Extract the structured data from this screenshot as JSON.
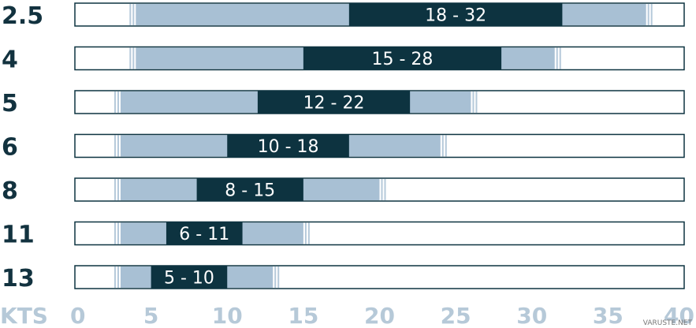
{
  "chart_data": {
    "type": "bar",
    "orientation": "horizontal",
    "xlim": [
      0,
      40
    ],
    "x_ticks": [
      "0",
      "5",
      "10",
      "15",
      "20",
      "25",
      "30",
      "35",
      "40"
    ],
    "x_unit_label": "KTS",
    "rows": [
      {
        "size": "2.5",
        "label": "18 - 32",
        "optimal": [
          18,
          32
        ],
        "extended": [
          4,
          37.5
        ]
      },
      {
        "size": "4",
        "label": "15 - 28",
        "optimal": [
          15,
          28
        ],
        "extended": [
          4,
          31.5
        ]
      },
      {
        "size": "5",
        "label": "12 - 22",
        "optimal": [
          12,
          22
        ],
        "extended": [
          3,
          26
        ]
      },
      {
        "size": "6",
        "label": "10 - 18",
        "optimal": [
          10,
          18
        ],
        "extended": [
          3,
          24
        ]
      },
      {
        "size": "8",
        "label": "8 - 15",
        "optimal": [
          8,
          15
        ],
        "extended": [
          3,
          20
        ]
      },
      {
        "size": "11",
        "label": "6 - 11",
        "optimal": [
          6,
          11
        ],
        "extended": [
          3,
          15
        ]
      },
      {
        "size": "13",
        "label": "5 - 10",
        "optimal": [
          5,
          10
        ],
        "extended": [
          3,
          13
        ]
      }
    ],
    "colors": {
      "optimal": "#0d3340",
      "extended": "#a8c0d4",
      "outline": "#0d3340",
      "labels": "#12323f",
      "ticks": "#b6c9d8"
    }
  },
  "watermark": "VARUSTE.NET"
}
